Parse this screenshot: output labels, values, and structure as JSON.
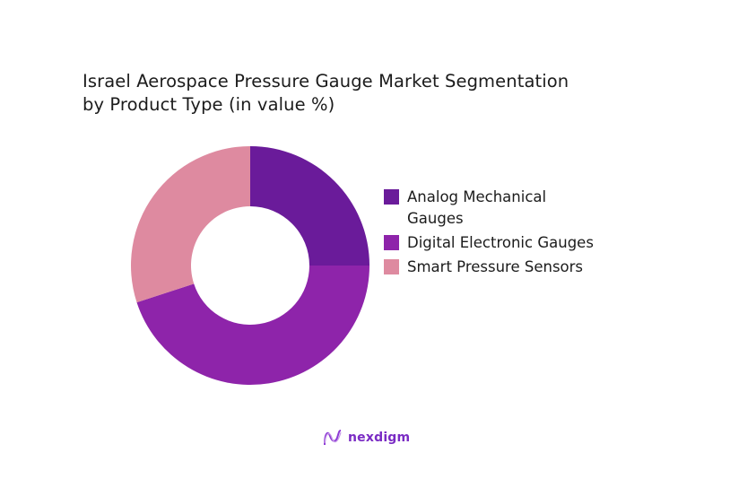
{
  "chart_data": {
    "type": "pie",
    "subtype": "donut",
    "title": "Israel Aerospace Pressure Gauge Market Segmentation by Product Type (in value %)",
    "categories": [
      "Analog Mechanical Gauges",
      "Digital Electronic Gauges",
      "Smart Pressure Sensors"
    ],
    "values": [
      25,
      45,
      30
    ],
    "unit": "%",
    "colors": [
      "#6a1b9a",
      "#8e24aa",
      "#de8aa0"
    ],
    "legend_position": "right",
    "start_angle": "top, clockwise",
    "data_labels": false
  },
  "title": {
    "line1": "Israel Aerospace Pressure Gauge Market Segmentation",
    "line2": "by Product Type (in value %)"
  },
  "legend": [
    {
      "label": "Analog Mechanical Gauges",
      "color": "#6a1b9a"
    },
    {
      "label": "Digital Electronic Gauges",
      "color": "#8e24aa"
    },
    {
      "label": "Smart Pressure Sensors",
      "color": "#de8aa0"
    }
  ],
  "brand": {
    "name": "nexdigm",
    "color": "#7a2bc4"
  }
}
